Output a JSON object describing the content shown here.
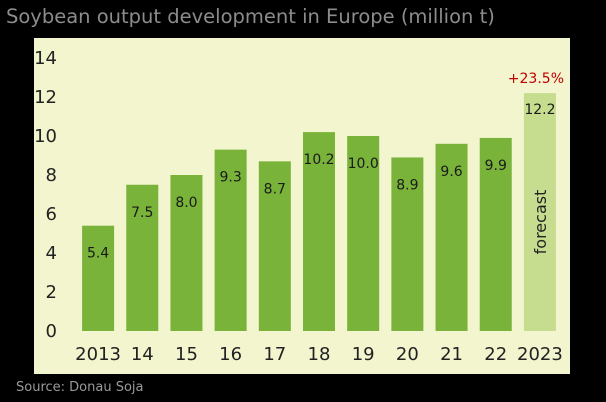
{
  "chart_data": {
    "type": "bar",
    "title": "Soybean output development in Europe (million t)",
    "categories": [
      "2013",
      "14",
      "15",
      "16",
      "17",
      "18",
      "19",
      "20",
      "21",
      "22",
      "2023"
    ],
    "values": [
      5.4,
      7.5,
      8.0,
      9.3,
      8.7,
      10.2,
      10.0,
      8.9,
      9.6,
      9.9,
      12.2
    ],
    "value_labels": [
      "5.4",
      "7.5",
      "8.0",
      "9.3",
      "8.7",
      "10.2",
      "10.0",
      "8.9",
      "9.6",
      "9.9",
      "12.2"
    ],
    "y_ticks": [
      "0",
      "2",
      "4",
      "6",
      "8",
      "10",
      "12",
      "14"
    ],
    "ylim": [
      0,
      14
    ],
    "xlabel": "",
    "ylabel": "",
    "grid": false,
    "legend": "none",
    "annotations": {
      "growth": "+23.5%",
      "forecast": "forecast"
    },
    "forecast_index": 10,
    "colors": {
      "bar": "#79b33a",
      "bar_forecast": "#c6dd8f",
      "plot_background": "#f2f5cd",
      "page_background": "#000000",
      "annotation": "#c00000"
    }
  },
  "source": "Source: Donau Soja"
}
